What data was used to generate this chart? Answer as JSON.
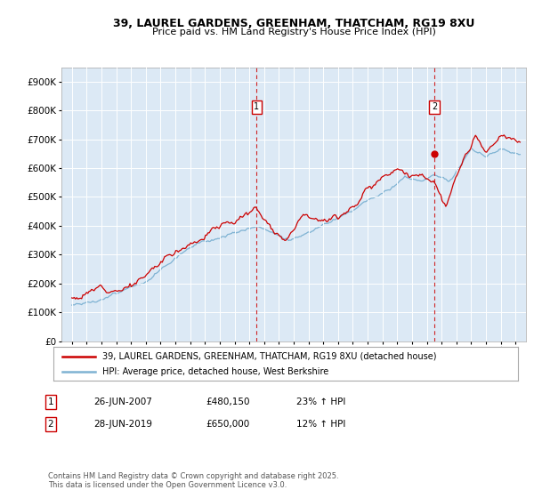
{
  "title_line1": "39, LAUREL GARDENS, GREENHAM, THATCHAM, RG19 8XU",
  "title_line2": "Price paid vs. HM Land Registry's House Price Index (HPI)",
  "plot_bg_color": "#dce9f5",
  "ylim": [
    0,
    950000
  ],
  "yticks": [
    0,
    100000,
    200000,
    300000,
    400000,
    500000,
    600000,
    700000,
    800000,
    900000
  ],
  "legend_line1": "39, LAUREL GARDENS, GREENHAM, THATCHAM, RG19 8XU (detached house)",
  "legend_line2": "HPI: Average price, detached house, West Berkshire",
  "marker1_date": "26-JUN-2007",
  "marker1_price": "£480,150",
  "marker1_hpi": "23% ↑ HPI",
  "marker1_label": "1",
  "marker2_date": "28-JUN-2019",
  "marker2_price": "£650,000",
  "marker2_hpi": "12% ↑ HPI",
  "marker2_label": "2",
  "footer": "Contains HM Land Registry data © Crown copyright and database right 2025.\nThis data is licensed under the Open Government Licence v3.0.",
  "red_color": "#cc0000",
  "blue_color": "#7fb3d3",
  "marker1_x": 2007.5,
  "marker2_x": 2019.5
}
